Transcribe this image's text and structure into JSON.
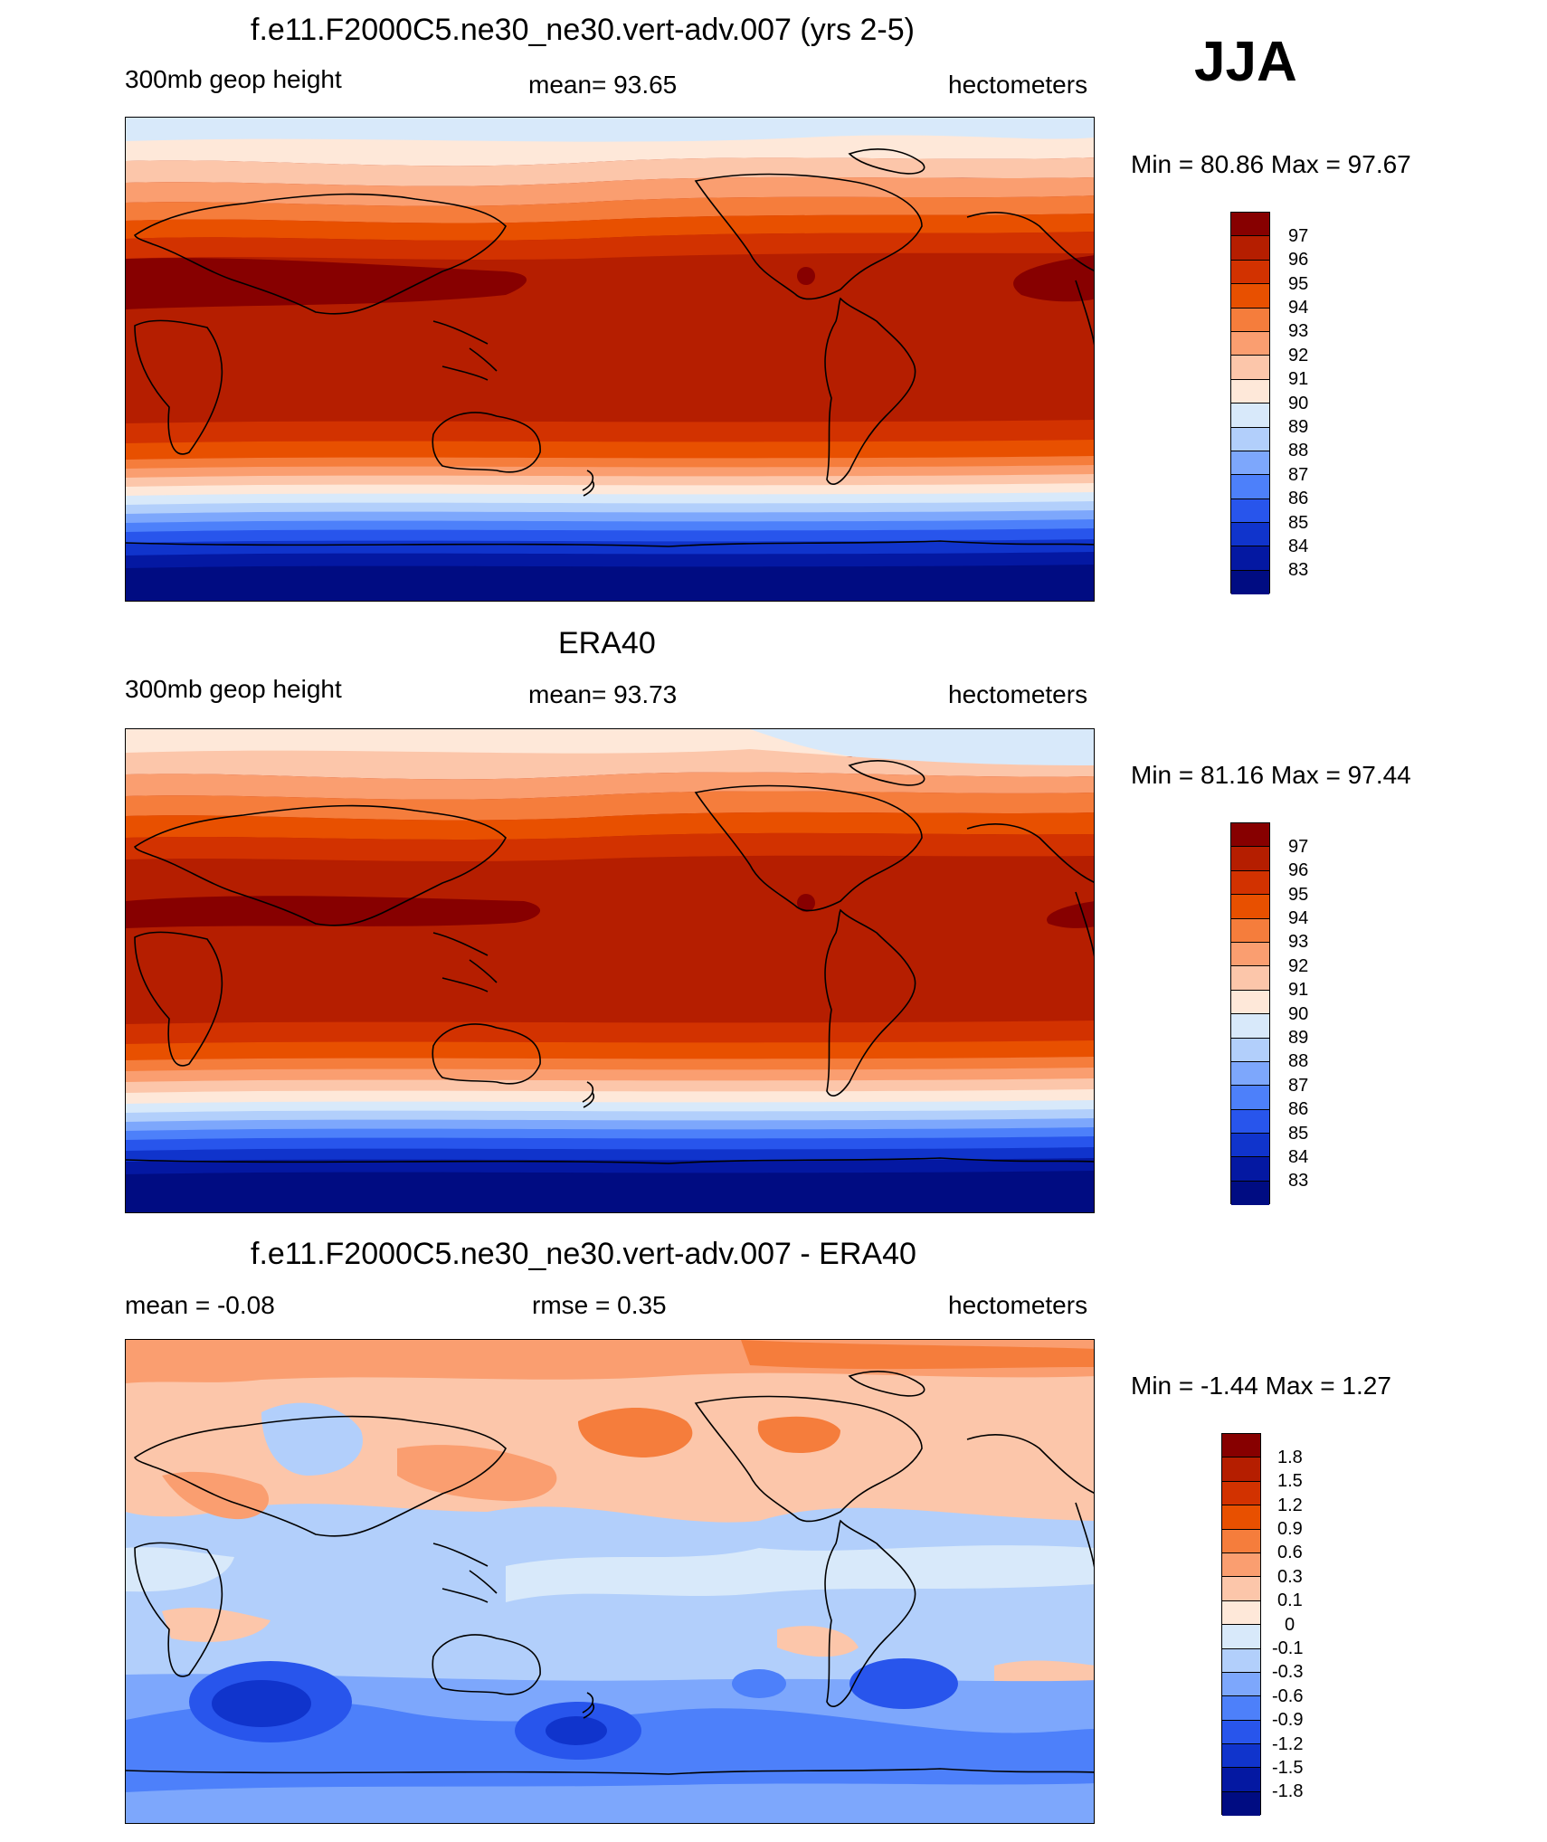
{
  "season": "JJA",
  "panels": [
    {
      "title": "f.e11.F2000C5.ne30_ne30.vert-adv.007 (yrs 2-5)",
      "left_label": "300mb geop height",
      "center_label": "mean=  93.65",
      "right_label": "hectometers",
      "minmax": "Min =  80.86 Max =  97.67",
      "levels": [
        "97",
        "96",
        "95",
        "94",
        "93",
        "92",
        "91",
        "90",
        "89",
        "88",
        "87",
        "86",
        "85",
        "84",
        "83"
      ]
    },
    {
      "title": "ERA40",
      "left_label": "300mb geop height",
      "center_label": "mean=  93.73",
      "right_label": "hectometers",
      "minmax": "Min =  81.16 Max =  97.44",
      "levels": [
        "97",
        "96",
        "95",
        "94",
        "93",
        "92",
        "91",
        "90",
        "89",
        "88",
        "87",
        "86",
        "85",
        "84",
        "83"
      ]
    },
    {
      "title": "f.e11.F2000C5.ne30_ne30.vert-adv.007 - ERA40",
      "left_label": "mean =  -0.08",
      "center_label": "rmse =   0.35",
      "right_label": "hectometers",
      "minmax": "Min =  -1.44 Max =   1.27",
      "levels": [
        "1.8",
        "1.5",
        "1.2",
        "0.9",
        "0.6",
        "0.3",
        "0.1",
        "0",
        "-0.1",
        "-0.3",
        "-0.6",
        "-0.9",
        "-1.2",
        "-1.5",
        "-1.8"
      ]
    }
  ],
  "colors": {
    "abs_palette": [
      "#870000",
      "#b51e00",
      "#d23200",
      "#e85000",
      "#f57d3c",
      "#fa9e70",
      "#fcc6aa",
      "#fee8d9",
      "#d8e9fa",
      "#b2cffb",
      "#7da7fc",
      "#4d80fa",
      "#2855ec",
      "#1034cc",
      "#0418a2",
      "#000c82"
    ],
    "diff_palette": [
      "#870000",
      "#b51e00",
      "#d23200",
      "#e85000",
      "#f57d3c",
      "#fa9e70",
      "#fcc6aa",
      "#fee8d9",
      "#d8e9fa",
      "#b2cffb",
      "#7da7fc",
      "#4d80fa",
      "#2855ec",
      "#1034cc",
      "#0418a2",
      "#000c82"
    ]
  }
}
